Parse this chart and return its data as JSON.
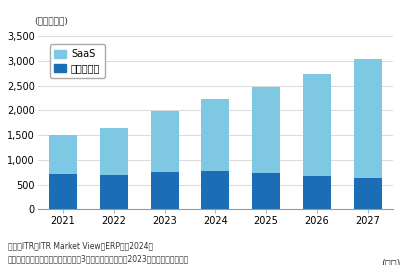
{
  "years": [
    "2021",
    "2022",
    "2023",
    "2024",
    "2025",
    "2026",
    "2027"
  ],
  "package_values": [
    720,
    700,
    750,
    770,
    740,
    670,
    630
  ],
  "total_values": [
    1510,
    1650,
    1980,
    2220,
    2480,
    2730,
    3040
  ],
  "saas_color": "#7EC8E3",
  "package_color": "#1B6DB5",
  "ylim": [
    0,
    3500
  ],
  "yticks": [
    0,
    500,
    1000,
    1500,
    2000,
    2500,
    3000,
    3500
  ],
  "unit_label": "(単位：億円)",
  "xlabel_suffix": "(年度)",
  "legend_saas": "SaaS",
  "legend_package": "パッケージ",
  "footnote1": "出典：ITR『ITR Market View：ERP市場2024』",
  "footnote2": "＊ベンダーの売上金額を対象とし，3月期ベースで换算．2023年度以降は予測値．",
  "bg_color": "#FFFFFF",
  "grid_color": "#CCCCCC",
  "bar_width": 0.55,
  "font_size_ticks": 7,
  "font_size_legend": 7,
  "font_size_unit": 6.5,
  "font_size_footnote": 5.5,
  "font_size_year_suffix": 7
}
